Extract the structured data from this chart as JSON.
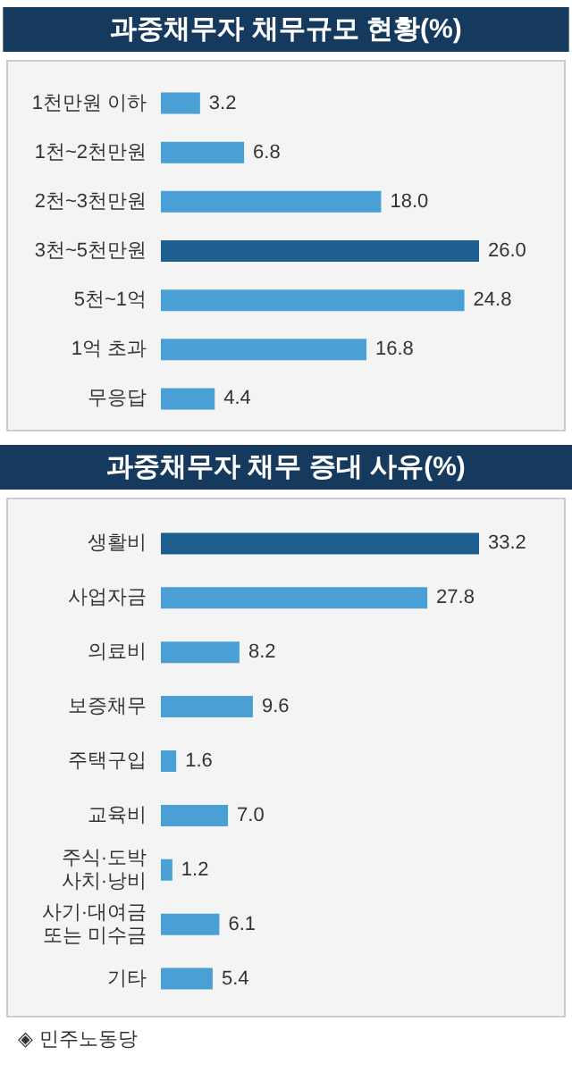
{
  "chart_data": [
    {
      "type": "bar",
      "orientation": "horizontal",
      "title": "과중채무자 채무규모 현황(%)",
      "categories": [
        "1천만원 이하",
        "1천~2천만원",
        "2천~3천만원",
        "3천~5천만원",
        "5천~1억",
        "1억 초과",
        "무응답"
      ],
      "values": [
        3.2,
        6.8,
        18.0,
        26.0,
        24.8,
        16.8,
        4.4
      ],
      "value_labels": [
        "3.2",
        "6.8",
        "18.0",
        "26.0",
        "24.8",
        "16.8",
        "4.4"
      ],
      "colors": [
        "#4aa0d5",
        "#4aa0d5",
        "#4aa0d5",
        "#1f5f8f",
        "#4aa0d5",
        "#4aa0d5",
        "#4aa0d5"
      ]
    },
    {
      "type": "bar",
      "orientation": "horizontal",
      "title": "과중채무자 채무 증대 사유(%)",
      "categories": [
        "생활비",
        "사업자금",
        "의료비",
        "보증채무",
        "주택구입",
        "교육비",
        "주식·도박\n사치·낭비",
        "사기·대여금\n또는 미수금",
        "기타"
      ],
      "values": [
        33.2,
        27.8,
        8.2,
        9.6,
        1.6,
        7.0,
        1.2,
        6.1,
        5.4
      ],
      "value_labels": [
        "33.2",
        "27.8",
        "8.2",
        "9.6",
        "1.6",
        "7.0",
        "1.2",
        "6.1",
        "5.4"
      ],
      "colors": [
        "#1f5f8f",
        "#4aa0d5",
        "#4aa0d5",
        "#4aa0d5",
        "#4aa0d5",
        "#4aa0d5",
        "#4aa0d5",
        "#4aa0d5",
        "#4aa0d5"
      ],
      "annotations": [
        "◈ 민주노동당"
      ]
    }
  ]
}
